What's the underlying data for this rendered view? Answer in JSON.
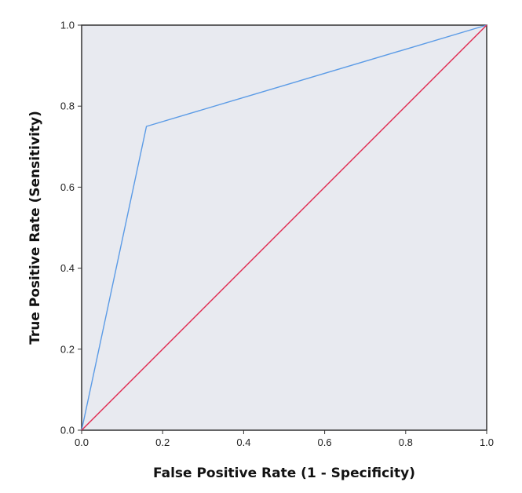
{
  "chart_data": {
    "type": "line",
    "title": "",
    "xlabel": "False Positive Rate (1 - Specificity)",
    "ylabel": "True Positive Rate (Sensitivity)",
    "xlim": [
      0.0,
      1.0
    ],
    "ylim": [
      0.0,
      1.0
    ],
    "x_ticks": [
      "0.0",
      "0.2",
      "0.4",
      "0.6",
      "0.8",
      "1.0"
    ],
    "y_ticks": [
      "0.0",
      "0.2",
      "0.4",
      "0.6",
      "0.8",
      "1.0"
    ],
    "grid": false,
    "legend": "none",
    "background_color": "#E8EAF0",
    "series": [
      {
        "color": "#5B9BE6",
        "x": [
          0.0,
          0.16,
          1.0
        ],
        "y": [
          0.0,
          0.75,
          1.0
        ]
      },
      {
        "color": "#E0294F",
        "x": [
          0.0,
          1.0
        ],
        "y": [
          0.0,
          1.0
        ]
      }
    ]
  }
}
